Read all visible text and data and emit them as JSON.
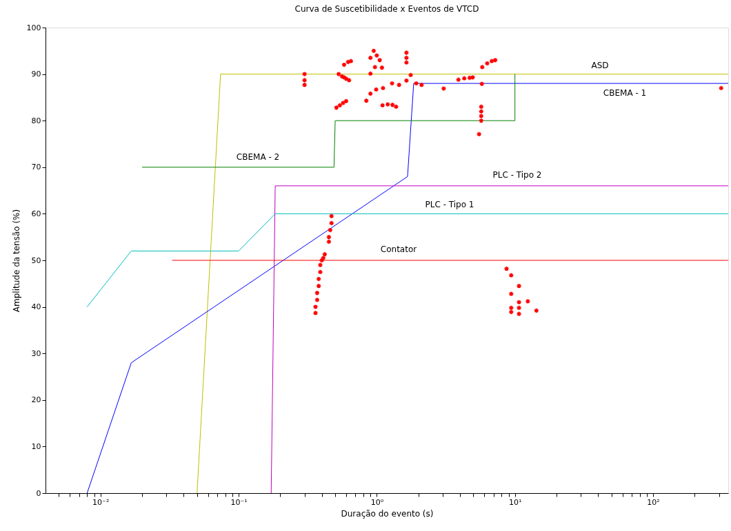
{
  "chart_data": {
    "type": "line",
    "title": "Curva de Suscetibilidade x Eventos de VTCD",
    "xlabel": "Duração do evento (s)",
    "ylabel": "Amplitude da tensão (%)",
    "log": "x",
    "grid": false,
    "marker": "none",
    "line_style": "solid",
    "xlim": [
      0.004,
      350
    ],
    "ylim": [
      0,
      100
    ],
    "xticks": [
      {
        "value": 0.005,
        "label": null
      },
      {
        "value": 0.006,
        "label": null
      },
      {
        "value": 0.007,
        "label": null
      },
      {
        "value": 0.008,
        "label": null
      },
      {
        "value": 0.009,
        "label": null
      },
      {
        "value": 0.01,
        "label": "10⁻²"
      },
      {
        "value": 0.02,
        "label": null
      },
      {
        "value": 0.03,
        "label": null
      },
      {
        "value": 0.04,
        "label": null
      },
      {
        "value": 0.05,
        "label": null
      },
      {
        "value": 0.06,
        "label": null
      },
      {
        "value": 0.07,
        "label": null
      },
      {
        "value": 0.08,
        "label": null
      },
      {
        "value": 0.09,
        "label": null
      },
      {
        "value": 0.1,
        "label": "10⁻¹"
      },
      {
        "value": 0.2,
        "label": null
      },
      {
        "value": 0.3,
        "label": null
      },
      {
        "value": 0.4,
        "label": null
      },
      {
        "value": 0.5,
        "label": null
      },
      {
        "value": 0.6,
        "label": null
      },
      {
        "value": 0.7,
        "label": null
      },
      {
        "value": 0.8,
        "label": null
      },
      {
        "value": 0.9,
        "label": null
      },
      {
        "value": 1,
        "label": "10⁰"
      },
      {
        "value": 2,
        "label": null
      },
      {
        "value": 3,
        "label": null
      },
      {
        "value": 4,
        "label": null
      },
      {
        "value": 5,
        "label": null
      },
      {
        "value": 6,
        "label": null
      },
      {
        "value": 7,
        "label": null
      },
      {
        "value": 8,
        "label": null
      },
      {
        "value": 9,
        "label": null
      },
      {
        "value": 10,
        "label": "10¹"
      },
      {
        "value": 20,
        "label": null
      },
      {
        "value": 30,
        "label": null
      },
      {
        "value": 40,
        "label": null
      },
      {
        "value": 50,
        "label": null
      },
      {
        "value": 60,
        "label": null
      },
      {
        "value": 70,
        "label": null
      },
      {
        "value": 80,
        "label": null
      },
      {
        "value": 90,
        "label": null
      },
      {
        "value": 100,
        "label": "10²"
      },
      {
        "value": 200,
        "label": null
      },
      {
        "value": 300,
        "label": null
      }
    ],
    "yticks": [
      0,
      10,
      20,
      30,
      40,
      50,
      60,
      70,
      80,
      90,
      100
    ],
    "series": [
      {
        "color": "#bfbf00",
        "x": [
          0.05,
          0.074,
          350
        ],
        "values": [
          0,
          90,
          90
        ]
      },
      {
        "color": "#0000ff",
        "x": [
          0.008,
          0.0167,
          1.67,
          1.85,
          350
        ],
        "values": [
          0,
          28,
          68,
          88,
          88
        ]
      },
      {
        "color": "#008000",
        "x": [
          0.02,
          0.49,
          0.5,
          10,
          10
        ],
        "values": [
          70,
          70,
          80,
          80,
          90
        ]
      },
      {
        "color": "#bf00bf",
        "x": [
          0.172,
          0.184,
          350
        ],
        "values": [
          0,
          66,
          66
        ]
      },
      {
        "color": "#00bfbf",
        "x": [
          0.008,
          0.0167,
          0.1,
          0.184,
          350
        ],
        "values": [
          40,
          52,
          52,
          60,
          60
        ]
      },
      {
        "color": "#ff0000",
        "x": [
          0.033,
          350
        ],
        "values": [
          50,
          50
        ]
      },
      {
        "type": "scatter",
        "marker": "cross",
        "color": "#ff0000",
        "x": [
          0.3,
          0.3,
          0.3,
          0.51,
          0.54,
          0.57,
          0.6,
          0.53,
          0.56,
          0.58,
          0.6,
          0.63,
          0.58,
          0.62,
          0.65,
          0.9,
          0.9,
          0.95,
          1.0,
          1.05,
          1.09,
          0.97,
          1.64,
          1.64,
          1.64,
          0.84,
          0.9,
          0.99,
          1.11,
          1.29,
          1.45,
          1.64,
          1.76,
          1.93,
          2.11,
          1.1,
          1.2,
          1.3,
          1.38,
          3.05,
          3.9,
          4.3,
          4.7,
          4.95,
          5.8,
          6.3,
          6.8,
          7.2,
          5.76,
          5.7,
          5.7,
          5.7,
          5.7,
          5.5,
          311,
          0.47,
          0.47,
          0.46,
          0.45,
          0.45,
          0.36,
          0.36,
          0.37,
          0.37,
          0.38,
          0.38,
          0.39,
          0.39,
          0.4,
          0.42,
          0.41,
          8.7,
          9.4,
          10.7,
          9.4,
          12.4,
          10.7,
          9.4,
          9.4,
          10.7,
          10.7,
          14.3
        ],
        "values": [
          90,
          88.7,
          87.7,
          82.8,
          83.3,
          83.8,
          84.2,
          90,
          89.5,
          89.3,
          89,
          88.7,
          92,
          92.6,
          92.8,
          90.1,
          93.5,
          95,
          94,
          93,
          91.4,
          91.5,
          94.6,
          93.5,
          92.5,
          84.3,
          85.8,
          86.7,
          87,
          88,
          87.7,
          88.6,
          89.8,
          88,
          87.7,
          83.3,
          83.5,
          83.4,
          83,
          86.9,
          88.8,
          89.1,
          89.2,
          89.3,
          91.5,
          92.3,
          92.8,
          93,
          87.9,
          83,
          82,
          81,
          80,
          77.1,
          87,
          59.5,
          58,
          56.5,
          55,
          54,
          38.7,
          40,
          41.5,
          43,
          44.5,
          46,
          47.5,
          49,
          50,
          51.3,
          50.5,
          48.2,
          46.8,
          44.5,
          42.8,
          41.2,
          41,
          39.8,
          38.9,
          39.8,
          38.5,
          39.2
        ]
      }
    ],
    "annotations": [
      "ASD",
      "CBEMA - 1",
      "CBEMA - 2",
      "PLC - Tipo 2",
      "PLC - Tipo 1",
      "Contator"
    ]
  }
}
